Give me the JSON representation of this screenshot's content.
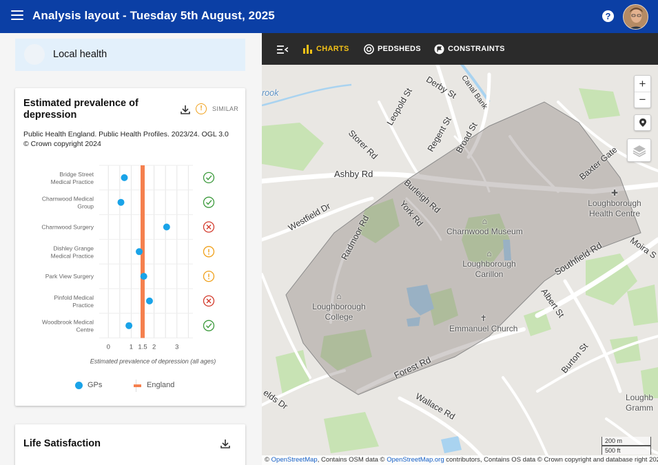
{
  "app": {
    "title": "Analysis layout - Tuesday 5th August, 2025",
    "icons": {
      "menu": "menu-icon",
      "help": "help-icon",
      "avatar": "user-avatar"
    }
  },
  "sidebar": {
    "area": {
      "name": "Local health"
    },
    "card1": {
      "title": "Estimated prevalence of depression",
      "similar_label": "SIMILAR",
      "source": "Public Health England. Public Health Profiles. 2023/24. OGL 3.0 © Crown copyright 2024",
      "legend": {
        "gps": "GPs",
        "england": "England"
      }
    },
    "card2": {
      "title": "Life Satisfaction"
    }
  },
  "chart_data": {
    "type": "scatter",
    "title": "Estimated prevalence of depression",
    "xlabel": "Estimated prevalence of depression (all ages)",
    "xlim": [
      -0.4,
      3.7
    ],
    "x_ticks": [
      0,
      1,
      2,
      3
    ],
    "x_tick_labels": [
      "0",
      "1",
      "2",
      "3"
    ],
    "x_minor_ticks": [
      1.5
    ],
    "x_minor_tick_labels": [
      "1.5"
    ],
    "reference_line": {
      "name": "England",
      "value": 1.5,
      "color": "#f5804e"
    },
    "series": [
      {
        "name": "GPs",
        "color": "#1aa3e8"
      }
    ],
    "categories": [
      {
        "label": [
          "Bridge Street",
          "Medical Practice"
        ],
        "value": 0.7,
        "status": "check"
      },
      {
        "label": [
          "Charnwood Medical",
          "Group"
        ],
        "value": 0.55,
        "status": "check"
      },
      {
        "label": [
          "Charnwood Surgery"
        ],
        "value": 2.55,
        "status": "cross"
      },
      {
        "label": [
          "Dishley Grange",
          "Medical Practice"
        ],
        "value": 1.35,
        "status": "warn"
      },
      {
        "label": [
          "Park View Surgery"
        ],
        "value": 1.55,
        "status": "warn"
      },
      {
        "label": [
          "Pinfold Medical",
          "Practice"
        ],
        "value": 1.8,
        "status": "cross"
      },
      {
        "label": [
          "Woodbrook Medical",
          "Centre"
        ],
        "value": 0.9,
        "status": "check"
      }
    ],
    "status_colors": {
      "check": "#3c9a3c",
      "warn": "#f0a01a",
      "cross": "#d33a2c"
    },
    "grid": true,
    "legend_position": "bottom"
  },
  "map": {
    "toolbar": {
      "charts": "CHARTS",
      "pedsheds": "PEDSHEDS",
      "constraints": "CONSTRAINTS"
    },
    "controls": {
      "zoom_in": "+",
      "zoom_out": "−"
    },
    "scale": {
      "metric": "200 m",
      "imperial": "500 ft"
    },
    "attribution": {
      "prefix": "©",
      "osm_link": "OpenStreetMap",
      "middle": ", Contains OSM data ©",
      "osm_org_link": "OpenStreetMap.org",
      "suffix": "contributors, Contains OS data © Crown copyright and database right 2024"
    },
    "labels": {
      "derby_st": "Derby St",
      "canal_bank": "Canal Bank",
      "leopold_st": "Leopold St",
      "regent_st": "Regent St",
      "broad_st": "Broad St",
      "storer_rd": "Storer Rd",
      "baxter_gate": "Baxter Gate",
      "ashby_rd": "Ashby Rd",
      "burleigh_rd": "Burleigh Rd",
      "york_rd": "York Rd",
      "westfield_dr": "Westfield Dr",
      "radmoor_rd": "Radmoor Rd",
      "southfield_rd": "Southfield Rd",
      "moira_st": "Moira S",
      "albert_st": "Albert St",
      "burton_st": "Burton St",
      "forest_rd": "Forest Rd",
      "wallace_rd": "Wallace Rd",
      "fields_dr": "elds Dr",
      "brook": "rook"
    },
    "pois": {
      "loughborough_health_centre": "Loughborough Health Centre",
      "charnwood_museum": "Charnwood Museum",
      "loughborough_carillon": "Loughborough Carillon",
      "loughborough_college": "Loughborough College",
      "emmanuel_church": "Emmanuel Church",
      "loughborough_grammar": "Loughb Gramm"
    }
  }
}
